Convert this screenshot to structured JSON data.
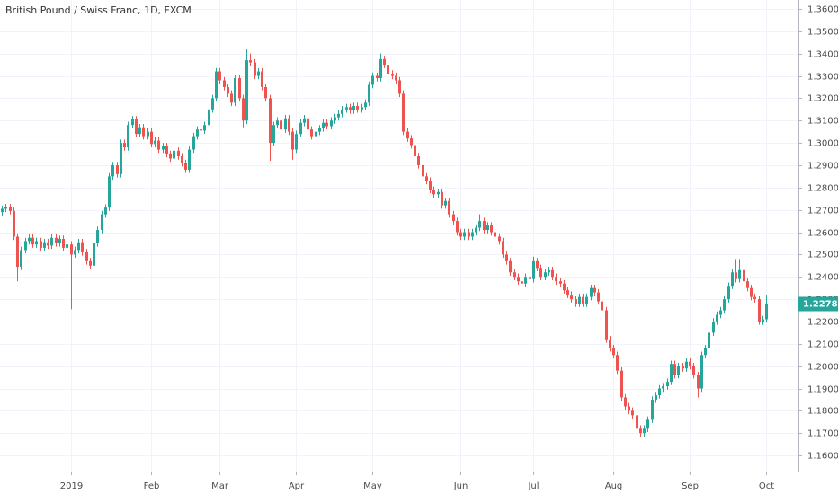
{
  "chart_data": {
    "type": "candlestick",
    "title": "British Pound / Swiss Franc, 1D, FXCM",
    "up_color": "#26a69a",
    "down_color": "#ef5350",
    "grid": true,
    "last_price": {
      "value": 1.22783,
      "label": "1.22783",
      "color": "#26a69a"
    },
    "ylim": [
      1.1528,
      1.364
    ],
    "yticks": [
      {
        "value": 1.16,
        "label": "1.16000"
      },
      {
        "value": 1.17,
        "label": "1.17000"
      },
      {
        "value": 1.18,
        "label": "1.18000"
      },
      {
        "value": 1.19,
        "label": "1.19000"
      },
      {
        "value": 1.2,
        "label": "1.20000"
      },
      {
        "value": 1.21,
        "label": "1.21000"
      },
      {
        "value": 1.22,
        "label": "1.22000"
      },
      {
        "value": 1.23,
        "label": "1.23000"
      },
      {
        "value": 1.24,
        "label": "1.24000"
      },
      {
        "value": 1.25,
        "label": "1.25000"
      },
      {
        "value": 1.26,
        "label": "1.26000"
      },
      {
        "value": 1.27,
        "label": "1.27000"
      },
      {
        "value": 1.28,
        "label": "1.28000"
      },
      {
        "value": 1.29,
        "label": "1.29000"
      },
      {
        "value": 1.3,
        "label": "1.30000"
      },
      {
        "value": 1.31,
        "label": "1.31000"
      },
      {
        "value": 1.32,
        "label": "1.32000"
      },
      {
        "value": 1.33,
        "label": "1.33000"
      },
      {
        "value": 1.34,
        "label": "1.34000"
      },
      {
        "value": 1.35,
        "label": "1.35000"
      },
      {
        "value": 1.36,
        "label": "1.36000"
      }
    ],
    "categories": [
      null,
      null,
      null,
      null,
      null,
      null,
      null,
      null,
      null,
      null,
      null,
      null,
      null,
      null,
      null,
      null,
      null,
      null,
      "2019",
      null,
      null,
      null,
      null,
      null,
      null,
      null,
      null,
      null,
      null,
      null,
      null,
      null,
      null,
      null,
      null,
      null,
      null,
      null,
      null,
      "Feb",
      null,
      null,
      null,
      null,
      null,
      null,
      null,
      null,
      null,
      null,
      null,
      null,
      null,
      null,
      null,
      null,
      null,
      "Mar",
      null,
      null,
      null,
      null,
      null,
      null,
      null,
      null,
      null,
      null,
      null,
      null,
      null,
      null,
      null,
      null,
      null,
      null,
      null,
      "Apr",
      null,
      null,
      null,
      null,
      null,
      null,
      null,
      null,
      null,
      null,
      null,
      null,
      null,
      null,
      null,
      null,
      null,
      null,
      null,
      "May",
      null,
      null,
      null,
      null,
      null,
      null,
      null,
      null,
      null,
      null,
      null,
      null,
      null,
      null,
      null,
      null,
      null,
      null,
      null,
      null,
      null,
      null,
      "Jun",
      null,
      null,
      null,
      null,
      null,
      null,
      null,
      null,
      null,
      null,
      null,
      null,
      null,
      null,
      null,
      null,
      null,
      null,
      "Jul",
      null,
      null,
      null,
      null,
      null,
      null,
      null,
      null,
      null,
      null,
      null,
      null,
      null,
      null,
      null,
      null,
      null,
      null,
      null,
      null,
      "Aug",
      null,
      null,
      null,
      null,
      null,
      null,
      null,
      null,
      null,
      null,
      null,
      null,
      null,
      null,
      null,
      null,
      null,
      null,
      null,
      "Sep",
      null,
      null,
      null,
      null,
      null,
      null,
      null,
      null,
      null,
      null,
      null,
      null,
      null,
      null,
      null,
      null,
      null,
      null,
      null,
      "Oct"
    ],
    "ohlc": [
      [
        1.269,
        1.272,
        1.2675,
        1.2705
      ],
      [
        1.2705,
        1.2727,
        1.269,
        1.2712
      ],
      [
        1.2712,
        1.2727,
        1.268,
        1.2695
      ],
      [
        1.2695,
        1.271,
        1.2565,
        1.258
      ],
      [
        1.258,
        1.2595,
        1.238,
        1.2445
      ],
      [
        1.2445,
        1.2535,
        1.243,
        1.252
      ],
      [
        1.252,
        1.2575,
        1.2505,
        1.256
      ],
      [
        1.256,
        1.259,
        1.2545,
        1.2575
      ],
      [
        1.2575,
        1.259,
        1.253,
        1.2545
      ],
      [
        1.2545,
        1.2575,
        1.253,
        1.256
      ],
      [
        1.256,
        1.2575,
        1.2515,
        1.253
      ],
      [
        1.253,
        1.257,
        1.2515,
        1.2555
      ],
      [
        1.2555,
        1.257,
        1.2525,
        1.254
      ],
      [
        1.254,
        1.259,
        1.2525,
        1.2575
      ],
      [
        1.2575,
        1.259,
        1.2535,
        1.255
      ],
      [
        1.255,
        1.2585,
        1.2535,
        1.257
      ],
      [
        1.257,
        1.2585,
        1.2515,
        1.253
      ],
      [
        1.253,
        1.256,
        1.2515,
        1.2545
      ],
      [
        1.2545,
        1.256,
        1.2255,
        1.25
      ],
      [
        1.25,
        1.2535,
        1.2485,
        1.252
      ],
      [
        1.252,
        1.257,
        1.2505,
        1.2555
      ],
      [
        1.2555,
        1.257,
        1.2495,
        1.251
      ],
      [
        1.251,
        1.2525,
        1.2455,
        1.247
      ],
      [
        1.247,
        1.2485,
        1.2435,
        1.245
      ],
      [
        1.245,
        1.2565,
        1.2435,
        1.255
      ],
      [
        1.255,
        1.2625,
        1.2535,
        1.261
      ],
      [
        1.261,
        1.2695,
        1.2595,
        1.268
      ],
      [
        1.268,
        1.2725,
        1.2665,
        1.271
      ],
      [
        1.271,
        1.2865,
        1.2695,
        1.285
      ],
      [
        1.285,
        1.2915,
        1.2835,
        1.29
      ],
      [
        1.29,
        1.2915,
        1.2845,
        1.286
      ],
      [
        1.286,
        1.3015,
        1.2845,
        1.3
      ],
      [
        1.3,
        1.3015,
        1.2965,
        1.298
      ],
      [
        1.298,
        1.3095,
        1.2965,
        1.308
      ],
      [
        1.308,
        1.312,
        1.3065,
        1.3105
      ],
      [
        1.3105,
        1.312,
        1.3025,
        1.304
      ],
      [
        1.304,
        1.3085,
        1.3025,
        1.307
      ],
      [
        1.307,
        1.3085,
        1.3015,
        1.303
      ],
      [
        1.303,
        1.3065,
        1.3015,
        1.305
      ],
      [
        1.305,
        1.3065,
        1.298,
        1.2995
      ],
      [
        1.2995,
        1.3025,
        1.298,
        1.301
      ],
      [
        1.301,
        1.3025,
        1.2955,
        1.297
      ],
      [
        1.297,
        1.3,
        1.2955,
        1.2985
      ],
      [
        1.2985,
        1.3,
        1.2935,
        1.295
      ],
      [
        1.295,
        1.2965,
        1.2915,
        1.293
      ],
      [
        1.293,
        1.298,
        1.2915,
        1.2965
      ],
      [
        1.2965,
        1.298,
        1.2925,
        1.294
      ],
      [
        1.294,
        1.2955,
        1.2895,
        1.291
      ],
      [
        1.291,
        1.2925,
        1.2865,
        1.288
      ],
      [
        1.288,
        1.2985,
        1.2865,
        1.297
      ],
      [
        1.297,
        1.3045,
        1.2955,
        1.303
      ],
      [
        1.303,
        1.3075,
        1.3015,
        1.306
      ],
      [
        1.306,
        1.3075,
        1.304,
        1.3055
      ],
      [
        1.3055,
        1.3095,
        1.304,
        1.308
      ],
      [
        1.308,
        1.3165,
        1.3065,
        1.315
      ],
      [
        1.315,
        1.3215,
        1.3135,
        1.32
      ],
      [
        1.32,
        1.3335,
        1.3185,
        1.332
      ],
      [
        1.332,
        1.3335,
        1.3265,
        1.328
      ],
      [
        1.328,
        1.3295,
        1.3235,
        1.325
      ],
      [
        1.325,
        1.3265,
        1.3205,
        1.322
      ],
      [
        1.322,
        1.3235,
        1.3165,
        1.318
      ],
      [
        1.318,
        1.3305,
        1.3165,
        1.329
      ],
      [
        1.329,
        1.3305,
        1.3185,
        1.32
      ],
      [
        1.32,
        1.3215,
        1.307,
        1.31
      ],
      [
        1.31,
        1.342,
        1.3085,
        1.337
      ],
      [
        1.337,
        1.34,
        1.3345,
        1.336
      ],
      [
        1.336,
        1.3375,
        1.3285,
        1.33
      ],
      [
        1.33,
        1.3335,
        1.3285,
        1.332
      ],
      [
        1.332,
        1.3335,
        1.3235,
        1.325
      ],
      [
        1.325,
        1.3265,
        1.3185,
        1.32
      ],
      [
        1.32,
        1.3215,
        1.292,
        1.3
      ],
      [
        1.3,
        1.3095,
        1.2985,
        1.308
      ],
      [
        1.308,
        1.3115,
        1.3065,
        1.31
      ],
      [
        1.31,
        1.3115,
        1.3045,
        1.306
      ],
      [
        1.306,
        1.3125,
        1.3045,
        1.311
      ],
      [
        1.311,
        1.3125,
        1.3035,
        1.305
      ],
      [
        1.305,
        1.3065,
        1.2925,
        1.297
      ],
      [
        1.297,
        1.3055,
        1.2955,
        1.304
      ],
      [
        1.304,
        1.3105,
        1.3025,
        1.309
      ],
      [
        1.309,
        1.3125,
        1.3075,
        1.311
      ],
      [
        1.311,
        1.3125,
        1.3045,
        1.306
      ],
      [
        1.306,
        1.3075,
        1.3015,
        1.303
      ],
      [
        1.303,
        1.3065,
        1.3015,
        1.305
      ],
      [
        1.305,
        1.308,
        1.3035,
        1.3065
      ],
      [
        1.3065,
        1.3105,
        1.305,
        1.309
      ],
      [
        1.309,
        1.3105,
        1.306,
        1.3075
      ],
      [
        1.3075,
        1.3115,
        1.306,
        1.31
      ],
      [
        1.31,
        1.313,
        1.3085,
        1.3115
      ],
      [
        1.3115,
        1.3145,
        1.31,
        1.313
      ],
      [
        1.313,
        1.3165,
        1.3115,
        1.315
      ],
      [
        1.315,
        1.3175,
        1.3135,
        1.316
      ],
      [
        1.316,
        1.3175,
        1.313,
        1.3145
      ],
      [
        1.3145,
        1.318,
        1.313,
        1.3165
      ],
      [
        1.3165,
        1.318,
        1.3135,
        1.315
      ],
      [
        1.315,
        1.3175,
        1.3135,
        1.316
      ],
      [
        1.316,
        1.3195,
        1.3145,
        1.318
      ],
      [
        1.318,
        1.3275,
        1.3165,
        1.326
      ],
      [
        1.326,
        1.3315,
        1.3245,
        1.33
      ],
      [
        1.33,
        1.3315,
        1.3275,
        1.329
      ],
      [
        1.329,
        1.34,
        1.3275,
        1.3375
      ],
      [
        1.3375,
        1.339,
        1.3335,
        1.335
      ],
      [
        1.335,
        1.3365,
        1.3295,
        1.331
      ],
      [
        1.331,
        1.3325,
        1.3285,
        1.33
      ],
      [
        1.33,
        1.3315,
        1.3265,
        1.328
      ],
      [
        1.328,
        1.3295,
        1.3205,
        1.322
      ],
      [
        1.322,
        1.3235,
        1.3035,
        1.305
      ],
      [
        1.305,
        1.3065,
        1.3005,
        1.302
      ],
      [
        1.302,
        1.3035,
        1.2975,
        1.299
      ],
      [
        1.299,
        1.3005,
        1.2925,
        1.294
      ],
      [
        1.294,
        1.2955,
        1.2885,
        1.29
      ],
      [
        1.29,
        1.2915,
        1.2835,
        1.285
      ],
      [
        1.285,
        1.2865,
        1.2815,
        1.283
      ],
      [
        1.283,
        1.2845,
        1.2775,
        1.279
      ],
      [
        1.279,
        1.2805,
        1.2755,
        1.277
      ],
      [
        1.277,
        1.2795,
        1.2755,
        1.278
      ],
      [
        1.278,
        1.2795,
        1.2705,
        1.272
      ],
      [
        1.272,
        1.2755,
        1.2705,
        1.274
      ],
      [
        1.274,
        1.2755,
        1.2665,
        1.268
      ],
      [
        1.268,
        1.2695,
        1.2635,
        1.265
      ],
      [
        1.265,
        1.2665,
        1.2585,
        1.26
      ],
      [
        1.26,
        1.2615,
        1.2565,
        1.258
      ],
      [
        1.258,
        1.2615,
        1.2565,
        1.26
      ],
      [
        1.26,
        1.2615,
        1.2565,
        1.258
      ],
      [
        1.258,
        1.2615,
        1.2565,
        1.26
      ],
      [
        1.26,
        1.2635,
        1.2585,
        1.262
      ],
      [
        1.262,
        1.268,
        1.2605,
        1.265
      ],
      [
        1.265,
        1.2665,
        1.2595,
        1.261
      ],
      [
        1.261,
        1.2645,
        1.2595,
        1.263
      ],
      [
        1.263,
        1.2645,
        1.2585,
        1.26
      ],
      [
        1.26,
        1.2615,
        1.2565,
        1.258
      ],
      [
        1.258,
        1.2595,
        1.2545,
        1.256
      ],
      [
        1.256,
        1.2575,
        1.2485,
        1.25
      ],
      [
        1.25,
        1.2515,
        1.2455,
        1.247
      ],
      [
        1.247,
        1.2485,
        1.2405,
        1.242
      ],
      [
        1.242,
        1.2435,
        1.2385,
        1.24
      ],
      [
        1.24,
        1.2415,
        1.2365,
        1.238
      ],
      [
        1.238,
        1.2395,
        1.2355,
        1.237
      ],
      [
        1.237,
        1.2415,
        1.2355,
        1.24
      ],
      [
        1.24,
        1.2415,
        1.2375,
        1.239
      ],
      [
        1.239,
        1.249,
        1.2375,
        1.247
      ],
      [
        1.247,
        1.2485,
        1.2425,
        1.244
      ],
      [
        1.244,
        1.2455,
        1.2385,
        1.24
      ],
      [
        1.24,
        1.2435,
        1.2385,
        1.242
      ],
      [
        1.242,
        1.2445,
        1.2405,
        1.243
      ],
      [
        1.243,
        1.2445,
        1.2385,
        1.24
      ],
      [
        1.24,
        1.2415,
        1.2365,
        1.238
      ],
      [
        1.238,
        1.2395,
        1.2355,
        1.237
      ],
      [
        1.237,
        1.2385,
        1.2325,
        1.234
      ],
      [
        1.234,
        1.2355,
        1.2305,
        1.232
      ],
      [
        1.232,
        1.2335,
        1.2285,
        1.23
      ],
      [
        1.23,
        1.2315,
        1.2265,
        1.228
      ],
      [
        1.228,
        1.2325,
        1.2265,
        1.231
      ],
      [
        1.231,
        1.2325,
        1.2265,
        1.228
      ],
      [
        1.228,
        1.2325,
        1.2265,
        1.231
      ],
      [
        1.231,
        1.2365,
        1.2295,
        1.235
      ],
      [
        1.235,
        1.2365,
        1.2315,
        1.233
      ],
      [
        1.233,
        1.2345,
        1.2275,
        1.229
      ],
      [
        1.229,
        1.2305,
        1.2235,
        1.225
      ],
      [
        1.225,
        1.2265,
        1.2105,
        1.212
      ],
      [
        1.212,
        1.2135,
        1.2065,
        1.208
      ],
      [
        1.208,
        1.2095,
        1.2035,
        1.205
      ],
      [
        1.205,
        1.2065,
        1.1965,
        1.198
      ],
      [
        1.198,
        1.1995,
        1.1845,
        1.186
      ],
      [
        1.186,
        1.1875,
        1.1805,
        1.182
      ],
      [
        1.182,
        1.1835,
        1.1785,
        1.18
      ],
      [
        1.18,
        1.1815,
        1.1765,
        1.178
      ],
      [
        1.178,
        1.1795,
        1.1705,
        1.172
      ],
      [
        1.172,
        1.1735,
        1.1685,
        1.17
      ],
      [
        1.17,
        1.1735,
        1.1685,
        1.172
      ],
      [
        1.172,
        1.1775,
        1.1705,
        1.176
      ],
      [
        1.176,
        1.1865,
        1.1745,
        1.185
      ],
      [
        1.185,
        1.1885,
        1.1835,
        1.187
      ],
      [
        1.187,
        1.1915,
        1.1855,
        1.19
      ],
      [
        1.19,
        1.1925,
        1.1885,
        1.191
      ],
      [
        1.191,
        1.1945,
        1.1895,
        1.193
      ],
      [
        1.193,
        1.2025,
        1.1915,
        1.201
      ],
      [
        1.201,
        1.2025,
        1.1945,
        1.196
      ],
      [
        1.196,
        1.2015,
        1.1945,
        1.2
      ],
      [
        1.2,
        1.2015,
        1.1975,
        1.199
      ],
      [
        1.199,
        1.2035,
        1.1975,
        1.202
      ],
      [
        1.202,
        1.2035,
        1.1985,
        1.2
      ],
      [
        1.2,
        1.2015,
        1.1945,
        1.196
      ],
      [
        1.196,
        1.1975,
        1.186,
        1.19
      ],
      [
        1.19,
        1.2065,
        1.1885,
        1.205
      ],
      [
        1.205,
        1.2095,
        1.2035,
        1.208
      ],
      [
        1.208,
        1.2165,
        1.2065,
        1.215
      ],
      [
        1.215,
        1.2215,
        1.2135,
        1.22
      ],
      [
        1.22,
        1.2245,
        1.2185,
        1.223
      ],
      [
        1.223,
        1.2265,
        1.2215,
        1.225
      ],
      [
        1.225,
        1.2315,
        1.2235,
        1.23
      ],
      [
        1.23,
        1.2375,
        1.2285,
        1.236
      ],
      [
        1.236,
        1.2435,
        1.2345,
        1.242
      ],
      [
        1.242,
        1.248,
        1.2375,
        1.239
      ],
      [
        1.239,
        1.248,
        1.2375,
        1.243
      ],
      [
        1.243,
        1.2445,
        1.2365,
        1.238
      ],
      [
        1.238,
        1.2395,
        1.2335,
        1.235
      ],
      [
        1.235,
        1.2365,
        1.2295,
        1.231
      ],
      [
        1.231,
        1.2325,
        1.2285,
        1.23
      ],
      [
        1.23,
        1.2315,
        1.2185,
        1.22
      ],
      [
        1.22,
        1.2225,
        1.2185,
        1.221
      ],
      [
        1.221,
        1.232,
        1.2195,
        1.2278
      ]
    ]
  }
}
